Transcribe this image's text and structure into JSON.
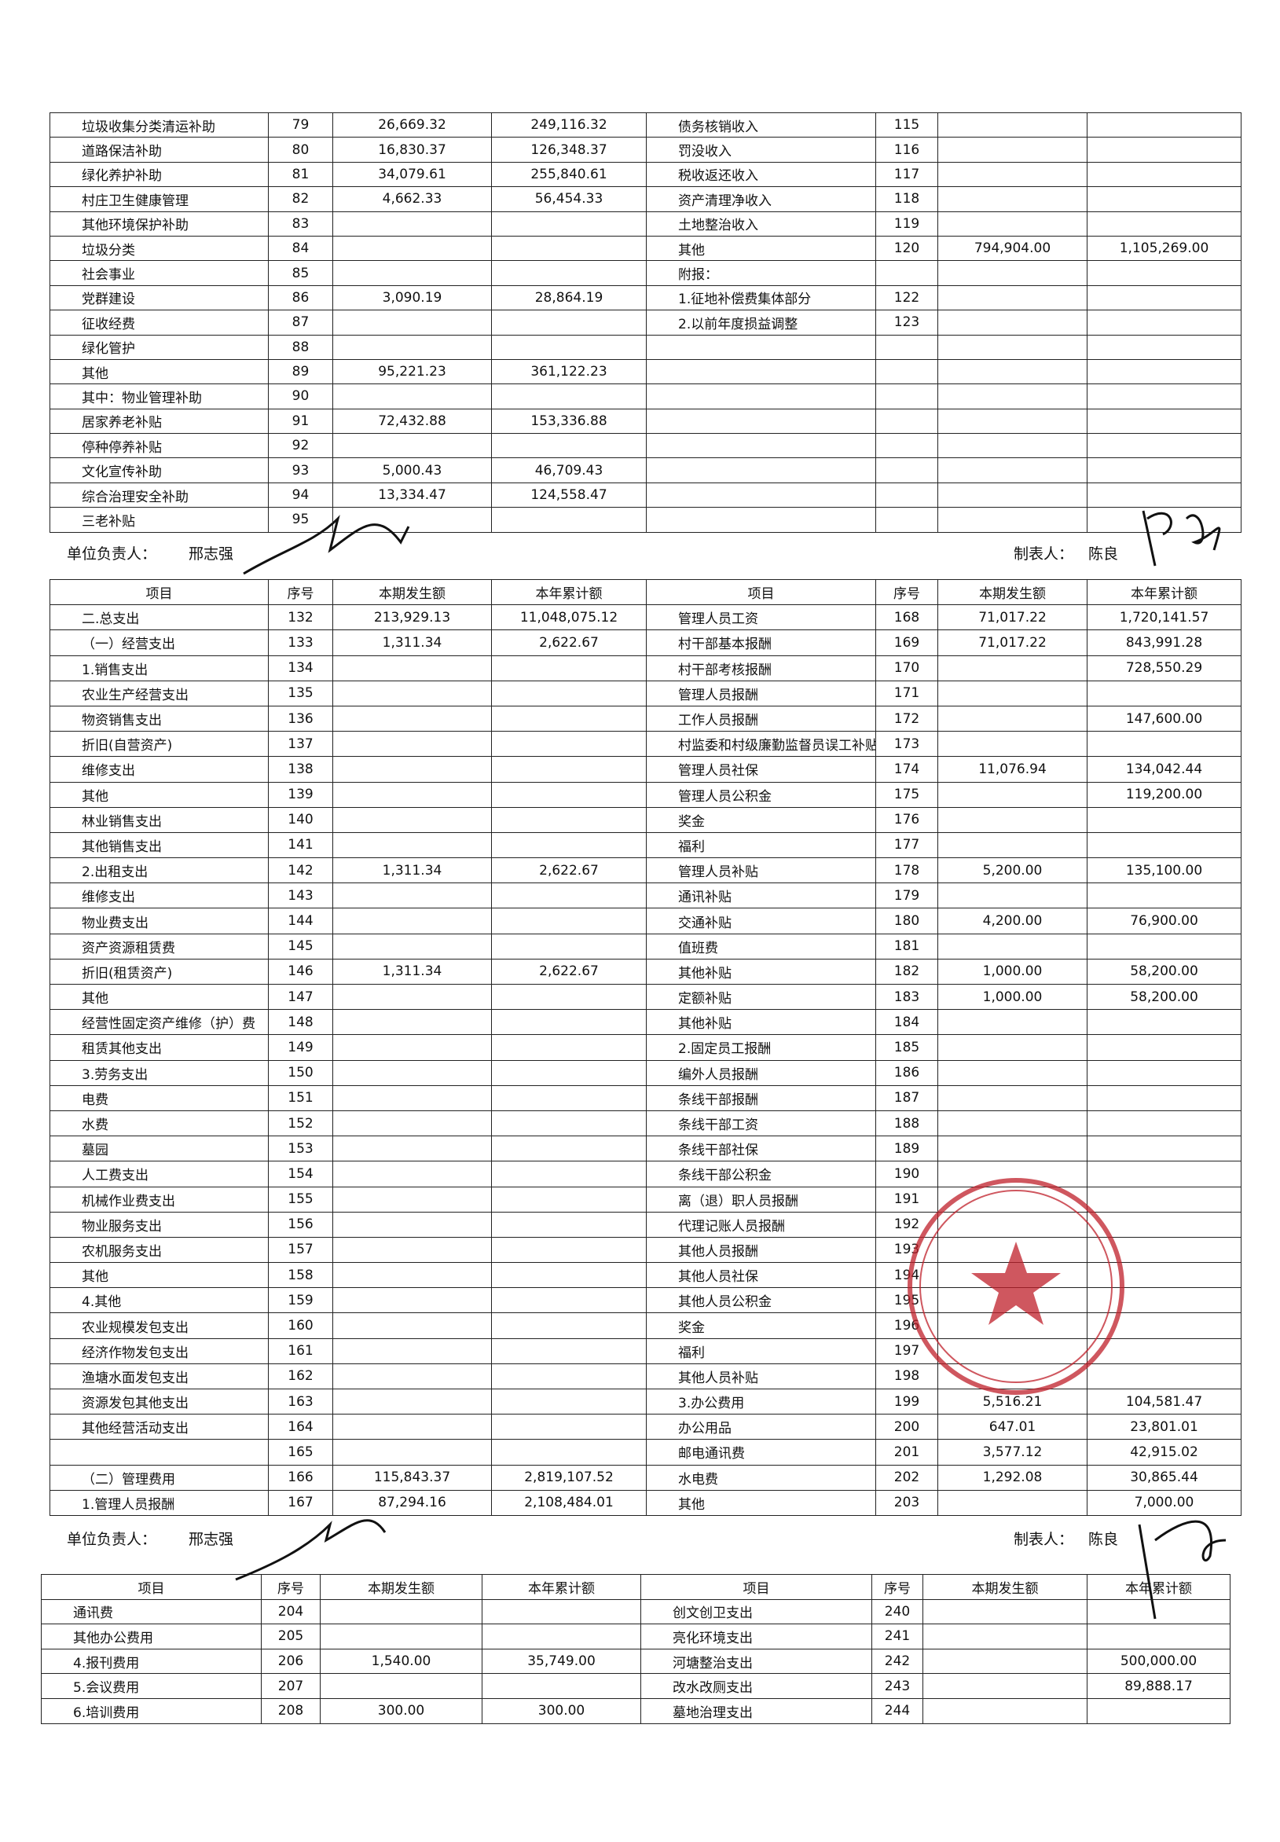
{
  "tables": [
    {
      "header": null,
      "rows": [
        [
          "垃圾收集分类清运补助",
          "79",
          "26,669.32",
          "249,116.32",
          "债务核销收入",
          "115",
          null,
          null
        ],
        [
          "道路保洁补助",
          "80",
          "16,830.37",
          "126,348.37",
          "罚没收入",
          "116",
          null,
          null
        ],
        [
          "绿化养护补助",
          "81",
          "34,079.61",
          "255,840.61",
          "税收返还收入",
          "117",
          null,
          null
        ],
        [
          "村庄卫生健康管理",
          "82",
          "4,662.33",
          "56,454.33",
          "资产清理净收入",
          "118",
          null,
          null
        ],
        [
          "其他环境保护补助",
          "83",
          null,
          null,
          "土地整治收入",
          "119",
          null,
          null
        ],
        [
          "垃圾分类",
          "84",
          null,
          null,
          "其他",
          "120",
          "794,904.00",
          "1,105,269.00"
        ],
        [
          "社会事业",
          "85",
          null,
          null,
          "附报：",
          null,
          null,
          null
        ],
        [
          "党群建设",
          "86",
          "3,090.19",
          "28,864.19",
          "1.征地补偿费集体部分",
          "122",
          null,
          null
        ],
        [
          "征收经费",
          "87",
          null,
          null,
          "2.以前年度损益调整",
          "123",
          null,
          null
        ],
        [
          "绿化管护",
          "88",
          null,
          null,
          null,
          null,
          null,
          null
        ],
        [
          "其他",
          "89",
          "95,221.23",
          "361,122.23",
          null,
          null,
          null,
          null
        ],
        [
          "其中：物业管理补助",
          "90",
          null,
          null,
          null,
          null,
          null,
          null
        ],
        [
          "居家养老补贴",
          "91",
          "72,432.88",
          "153,336.88",
          null,
          null,
          null,
          null
        ],
        [
          "停种停养补贴",
          "92",
          null,
          null,
          null,
          null,
          null,
          null
        ],
        [
          "文化宣传补助",
          "93",
          "5,000.43",
          "46,709.43",
          null,
          null,
          null,
          null
        ],
        [
          "综合治理安全补助",
          "94",
          "13,334.47",
          "124,558.47",
          null,
          null,
          null,
          null
        ],
        [
          "三老补贴",
          "95",
          null,
          null,
          null,
          null,
          null,
          null
        ]
      ]
    },
    {
      "header": [
        "项目",
        "序号",
        "本期发生额",
        "本年累计额",
        "项目",
        "序号",
        "本期发生额",
        "本年累计额"
      ],
      "rows": [
        [
          "二.总支出",
          "132",
          "213,929.13",
          "11,048,075.12",
          "管理人员工资",
          "168",
          "71,017.22",
          "1,720,141.57"
        ],
        [
          "（一）经营支出",
          "133",
          "1,311.34",
          "2,622.67",
          "村干部基本报酬",
          "169",
          "71,017.22",
          "843,991.28"
        ],
        [
          "1.销售支出",
          "134",
          null,
          null,
          "村干部考核报酬",
          "170",
          null,
          "728,550.29"
        ],
        [
          "农业生产经营支出",
          "135",
          null,
          null,
          "管理人员报酬",
          "171",
          null,
          null
        ],
        [
          "物资销售支出",
          "136",
          null,
          null,
          "工作人员报酬",
          "172",
          null,
          "147,600.00"
        ],
        [
          "折旧(自营资产)",
          "137",
          null,
          null,
          "村监委和村级廉勤监督员误工补贴",
          "173",
          null,
          null
        ],
        [
          "维修支出",
          "138",
          null,
          null,
          "管理人员社保",
          "174",
          "11,076.94",
          "134,042.44"
        ],
        [
          "其他",
          "139",
          null,
          null,
          "管理人员公积金",
          "175",
          null,
          "119,200.00"
        ],
        [
          "林业销售支出",
          "140",
          null,
          null,
          "奖金",
          "176",
          null,
          null
        ],
        [
          "其他销售支出",
          "141",
          null,
          null,
          "福利",
          "177",
          null,
          null
        ],
        [
          "2.出租支出",
          "142",
          "1,311.34",
          "2,622.67",
          "管理人员补贴",
          "178",
          "5,200.00",
          "135,100.00"
        ],
        [
          "维修支出",
          "143",
          null,
          null,
          "通讯补贴",
          "179",
          null,
          null
        ],
        [
          "物业费支出",
          "144",
          null,
          null,
          "交通补贴",
          "180",
          "4,200.00",
          "76,900.00"
        ],
        [
          "资产资源租赁费",
          "145",
          null,
          null,
          "值班费",
          "181",
          null,
          null
        ],
        [
          "折旧(租赁资产)",
          "146",
          "1,311.34",
          "2,622.67",
          "其他补贴",
          "182",
          "1,000.00",
          "58,200.00"
        ],
        [
          "其他",
          "147",
          null,
          null,
          "定额补贴",
          "183",
          "1,000.00",
          "58,200.00"
        ],
        [
          "经营性固定资产维修（护）费",
          "148",
          null,
          null,
          "其他补贴",
          "184",
          null,
          null
        ],
        [
          "租赁其他支出",
          "149",
          null,
          null,
          "2.固定员工报酬",
          "185",
          null,
          null
        ],
        [
          "3.劳务支出",
          "150",
          null,
          null,
          "编外人员报酬",
          "186",
          null,
          null
        ],
        [
          "电费",
          "151",
          null,
          null,
          "条线干部报酬",
          "187",
          null,
          null
        ],
        [
          "水费",
          "152",
          null,
          null,
          "条线干部工资",
          "188",
          null,
          null
        ],
        [
          "墓园",
          "153",
          null,
          null,
          "条线干部社保",
          "189",
          null,
          null
        ],
        [
          "人工费支出",
          "154",
          null,
          null,
          "条线干部公积金",
          "190",
          null,
          null
        ],
        [
          "机械作业费支出",
          "155",
          null,
          null,
          "离（退）职人员报酬",
          "191",
          null,
          null
        ],
        [
          "物业服务支出",
          "156",
          null,
          null,
          "代理记账人员报酬",
          "192",
          null,
          null
        ],
        [
          "农机服务支出",
          "157",
          null,
          null,
          "其他人员报酬",
          "193",
          null,
          null
        ],
        [
          "其他",
          "158",
          null,
          null,
          "其他人员社保",
          "194",
          null,
          null
        ],
        [
          "4.其他",
          "159",
          null,
          null,
          "其他人员公积金",
          "195",
          null,
          null
        ],
        [
          "农业规模发包支出",
          "160",
          null,
          null,
          "奖金",
          "196",
          null,
          null
        ],
        [
          "经济作物发包支出",
          "161",
          null,
          null,
          "福利",
          "197",
          null,
          null
        ],
        [
          "渔塘水面发包支出",
          "162",
          null,
          null,
          "其他人员补贴",
          "198",
          null,
          null
        ],
        [
          "资源发包其他支出",
          "163",
          null,
          null,
          "3.办公费用",
          "199",
          "5,516.21",
          "104,581.47"
        ],
        [
          "其他经营活动支出",
          "164",
          null,
          null,
          "办公用品",
          "200",
          "647.01",
          "23,801.01"
        ],
        [
          null,
          "165",
          null,
          null,
          "邮电通讯费",
          "201",
          "3,577.12",
          "42,915.02"
        ],
        [
          "（二）管理费用",
          "166",
          "115,843.37",
          "2,819,107.52",
          "水电费",
          "202",
          "1,292.08",
          "30,865.44"
        ],
        [
          "1.管理人员报酬",
          "167",
          "87,294.16",
          "2,108,484.01",
          "其他",
          "203",
          null,
          "7,000.00"
        ]
      ]
    },
    {
      "header": [
        "项目",
        "序号",
        "本期发生额",
        "本年累计额",
        "项目",
        "序号",
        "本期发生额",
        "本年累计额"
      ],
      "rows": [
        [
          "通讯费",
          "204",
          null,
          null,
          "创文创卫支出",
          "240",
          null,
          null
        ],
        [
          "其他办公费用",
          "205",
          null,
          null,
          "亮化环境支出",
          "241",
          null,
          null
        ],
        [
          "4.报刊费用",
          "206",
          "1,540.00",
          "35,749.00",
          "河塘整治支出",
          "242",
          null,
          "500,000.00"
        ],
        [
          "5.会议费用",
          "207",
          null,
          null,
          "改水改厕支出",
          "243",
          null,
          "89,888.17"
        ],
        [
          "6.培训费用",
          "208",
          "300.00",
          "300.00",
          "墓地治理支出",
          "244",
          null,
          null
        ]
      ]
    }
  ],
  "signatures": [
    {
      "leader_label": "单位负责人：",
      "leader": "邢志强",
      "preparer_label": "制表人：",
      "preparer": "陈良"
    },
    {
      "leader_label": "单位负责人：",
      "leader": "邢志强",
      "preparer_label": "制表人：",
      "preparer": "陈良"
    }
  ]
}
